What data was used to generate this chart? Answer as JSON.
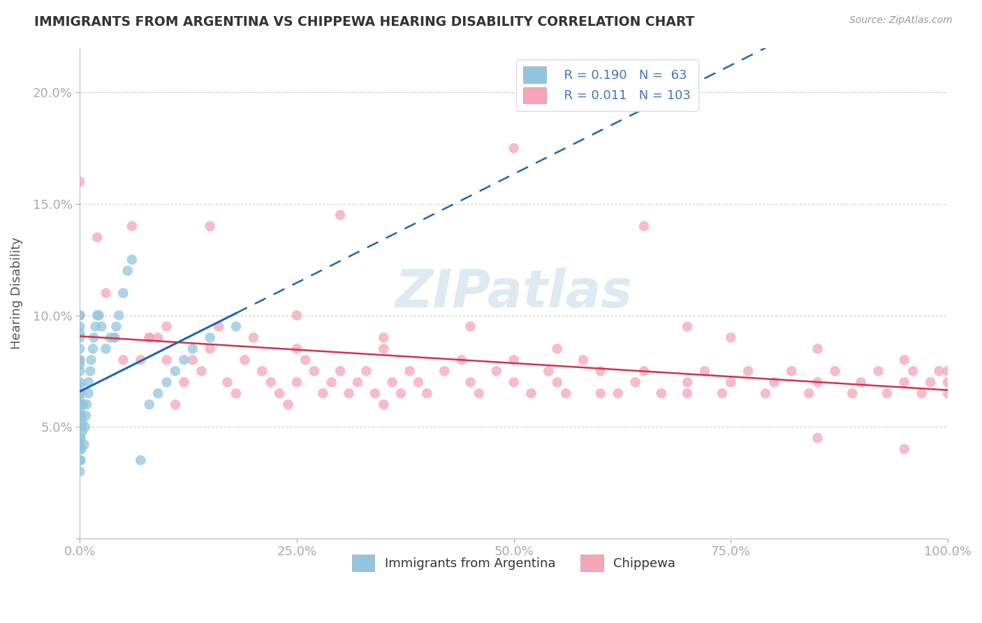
{
  "title": "IMMIGRANTS FROM ARGENTINA VS CHIPPEWA HEARING DISABILITY CORRELATION CHART",
  "source": "Source: ZipAtlas.com",
  "xlabel_blue": "Immigrants from Argentina",
  "xlabel_pink": "Chippewa",
  "ylabel": "Hearing Disability",
  "R_blue": 0.19,
  "N_blue": 63,
  "R_pink": 0.011,
  "N_pink": 103,
  "blue_color": "#92c5de",
  "pink_color": "#f4a6b8",
  "blue_line_color": "#2166ac",
  "pink_line_color": "#d6304a",
  "axis_label_color": "#4472C4",
  "watermark": "ZIPatlas",
  "blue_x": [
    0.0,
    0.0,
    0.0,
    0.0,
    0.0,
    0.0,
    0.0,
    0.0,
    0.0,
    0.0,
    0.0,
    0.0,
    0.0,
    0.0,
    0.0,
    0.0,
    0.0,
    0.0,
    0.0,
    0.0,
    0.0,
    0.0,
    0.0,
    0.0,
    0.001,
    0.001,
    0.001,
    0.002,
    0.002,
    0.003,
    0.003,
    0.004,
    0.005,
    0.006,
    0.007,
    0.008,
    0.01,
    0.01,
    0.012,
    0.013,
    0.015,
    0.016,
    0.018,
    0.02,
    0.022,
    0.025,
    0.03,
    0.035,
    0.04,
    0.042,
    0.045,
    0.05,
    0.055,
    0.06,
    0.07,
    0.08,
    0.09,
    0.1,
    0.11,
    0.12,
    0.13,
    0.15,
    0.18
  ],
  "blue_y": [
    0.03,
    0.035,
    0.04,
    0.042,
    0.045,
    0.05,
    0.05,
    0.052,
    0.055,
    0.058,
    0.06,
    0.062,
    0.065,
    0.068,
    0.07,
    0.075,
    0.078,
    0.08,
    0.085,
    0.09,
    0.092,
    0.095,
    0.1,
    0.055,
    0.035,
    0.045,
    0.06,
    0.04,
    0.055,
    0.048,
    0.052,
    0.06,
    0.042,
    0.05,
    0.055,
    0.06,
    0.065,
    0.07,
    0.075,
    0.08,
    0.085,
    0.09,
    0.095,
    0.1,
    0.1,
    0.095,
    0.085,
    0.09,
    0.09,
    0.095,
    0.1,
    0.11,
    0.12,
    0.125,
    0.035,
    0.06,
    0.065,
    0.07,
    0.075,
    0.08,
    0.085,
    0.09,
    0.095
  ],
  "pink_x": [
    0.0,
    0.0,
    0.0,
    0.0,
    0.02,
    0.03,
    0.04,
    0.05,
    0.07,
    0.08,
    0.1,
    0.11,
    0.12,
    0.13,
    0.14,
    0.15,
    0.16,
    0.17,
    0.18,
    0.19,
    0.2,
    0.21,
    0.22,
    0.23,
    0.24,
    0.25,
    0.26,
    0.27,
    0.28,
    0.29,
    0.3,
    0.31,
    0.32,
    0.33,
    0.34,
    0.35,
    0.36,
    0.37,
    0.38,
    0.39,
    0.4,
    0.42,
    0.44,
    0.45,
    0.46,
    0.48,
    0.5,
    0.52,
    0.54,
    0.55,
    0.56,
    0.58,
    0.6,
    0.62,
    0.64,
    0.65,
    0.67,
    0.7,
    0.72,
    0.74,
    0.75,
    0.77,
    0.79,
    0.8,
    0.82,
    0.84,
    0.85,
    0.87,
    0.89,
    0.9,
    0.92,
    0.93,
    0.95,
    0.96,
    0.97,
    0.98,
    0.99,
    1.0,
    1.0,
    1.0,
    0.15,
    0.25,
    0.35,
    0.45,
    0.55,
    0.65,
    0.75,
    0.85,
    0.95,
    0.1,
    0.3,
    0.5,
    0.7,
    0.06,
    0.08,
    0.09,
    0.25,
    0.35,
    0.5,
    0.6,
    0.7,
    0.85,
    0.95
  ],
  "pink_y": [
    0.065,
    0.08,
    0.1,
    0.16,
    0.135,
    0.11,
    0.09,
    0.08,
    0.08,
    0.09,
    0.08,
    0.06,
    0.07,
    0.08,
    0.075,
    0.085,
    0.095,
    0.07,
    0.065,
    0.08,
    0.09,
    0.075,
    0.07,
    0.065,
    0.06,
    0.07,
    0.08,
    0.075,
    0.065,
    0.07,
    0.075,
    0.065,
    0.07,
    0.075,
    0.065,
    0.06,
    0.07,
    0.065,
    0.075,
    0.07,
    0.065,
    0.075,
    0.08,
    0.07,
    0.065,
    0.075,
    0.07,
    0.065,
    0.075,
    0.07,
    0.065,
    0.08,
    0.075,
    0.065,
    0.07,
    0.075,
    0.065,
    0.07,
    0.075,
    0.065,
    0.07,
    0.075,
    0.065,
    0.07,
    0.075,
    0.065,
    0.07,
    0.075,
    0.065,
    0.07,
    0.075,
    0.065,
    0.07,
    0.075,
    0.065,
    0.07,
    0.075,
    0.065,
    0.07,
    0.075,
    0.14,
    0.1,
    0.09,
    0.095,
    0.085,
    0.14,
    0.09,
    0.085,
    0.08,
    0.095,
    0.145,
    0.175,
    0.095,
    0.14,
    0.09,
    0.09,
    0.085,
    0.085,
    0.08,
    0.065,
    0.065,
    0.045,
    0.04
  ],
  "xlim": [
    0.0,
    1.0
  ],
  "ylim": [
    0.0,
    0.22
  ],
  "xticks": [
    0.0,
    0.25,
    0.5,
    0.75,
    1.0
  ],
  "xtick_labels": [
    "0.0%",
    "25.0%",
    "50.0%",
    "75.0%",
    "100.0%"
  ],
  "yticks": [
    0.0,
    0.05,
    0.1,
    0.15,
    0.2
  ],
  "ytick_labels": [
    "",
    "5.0%",
    "10.0%",
    "15.0%",
    "20.0%"
  ]
}
